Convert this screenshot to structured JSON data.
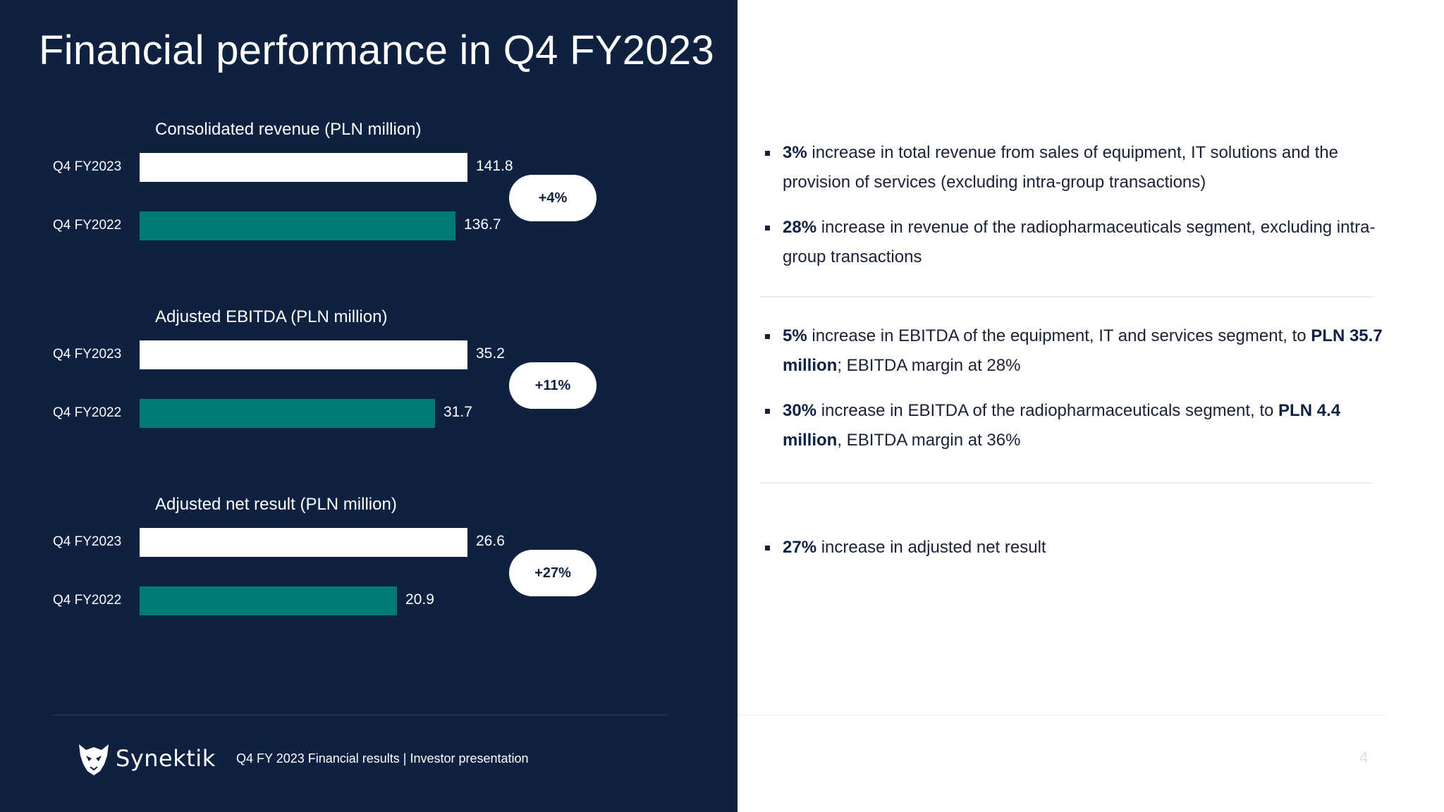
{
  "title": "Financial performance in Q4 FY2023",
  "chart_data": [
    {
      "type": "bar",
      "orientation": "horizontal",
      "title": "Consolidated revenue (PLN million)",
      "categories": [
        "Q4 FY2023",
        "Q4 FY2022"
      ],
      "values": [
        141.8,
        136.7
      ],
      "value_labels": [
        "141.8",
        "136.7"
      ],
      "change": "+4%",
      "colors": [
        "#ffffff",
        "#007a72"
      ]
    },
    {
      "type": "bar",
      "orientation": "horizontal",
      "title": "Adjusted EBITDA (PLN million)",
      "categories": [
        "Q4 FY2023",
        "Q4 FY2022"
      ],
      "values": [
        35.2,
        31.7
      ],
      "value_labels": [
        "35.2",
        "31.7"
      ],
      "change": "+11%",
      "colors": [
        "#ffffff",
        "#007a72"
      ]
    },
    {
      "type": "bar",
      "orientation": "horizontal",
      "title": "Adjusted net result (PLN million)",
      "categories": [
        "Q4 FY2023",
        "Q4 FY2022"
      ],
      "values": [
        26.6,
        20.9
      ],
      "value_labels": [
        "26.6",
        "20.9"
      ],
      "change": "+27%",
      "colors": [
        "#ffffff",
        "#007a72"
      ]
    }
  ],
  "bullets": {
    "revenue": [
      {
        "lead": "3%",
        "text": " increase in total revenue from sales of equipment, IT solutions and the provision of services (excluding intra-group transactions)"
      },
      {
        "lead": "28%",
        "text": " increase in revenue of the radiopharmaceuticals segment, excluding intra-group transactions"
      }
    ],
    "ebitda": [
      {
        "lead": "5%",
        "text": " increase in EBITDA of the equipment, IT and services segment, to ",
        "bold2": "PLN 35.7 million",
        "tail": "; EBITDA margin at 28%"
      },
      {
        "lead": "30%",
        "text": " increase in EBITDA of the radiopharmaceuticals segment, to ",
        "bold2": "PLN 4.4 million",
        "tail": ", EBITDA margin at 36%"
      }
    ],
    "net": [
      {
        "lead": "27%",
        "text": " increase in adjusted net result"
      }
    ]
  },
  "footer": {
    "logo_text": "Synektik",
    "text": "Q4 FY 2023 Financial results |  Investor presentation",
    "page_number": "4"
  },
  "colors": {
    "navy": "#0f2141",
    "teal": "#007a72",
    "white": "#ffffff"
  }
}
